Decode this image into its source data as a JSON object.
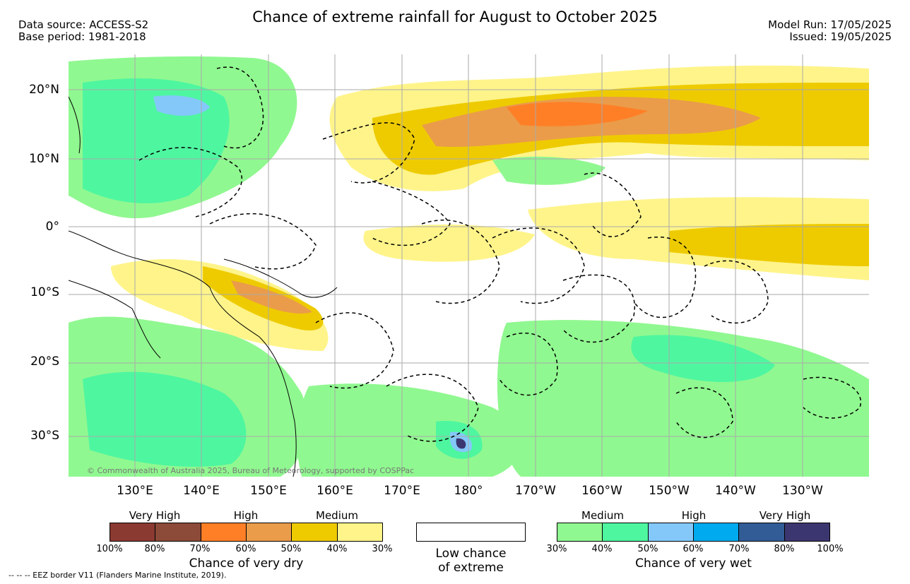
{
  "title": "Chance of extreme rainfall for August to October 2025",
  "data_source": "Data source: ACCESS-S2",
  "base_period": "Base period: 1981-2018",
  "model_run": "Model Run: 17/05/2025",
  "issued": "Issued: 19/05/2025",
  "copyright": "© Commonwealth of Australia 2025, Bureau of Meteorology, supported by COSPPac",
  "lat_labels": [
    "20°N",
    "10°N",
    "0°",
    "10°S",
    "20°S",
    "30°S"
  ],
  "lon_labels": [
    "130°E",
    "140°E",
    "150°E",
    "160°E",
    "170°E",
    "180°",
    "170°W",
    "160°W",
    "150°W",
    "140°W",
    "130°W"
  ],
  "dry_legend": {
    "categories": [
      "Very High",
      "High",
      "Medium"
    ],
    "ticks": [
      "100%",
      "80%",
      "70%",
      "60%",
      "50%",
      "40%",
      "30%"
    ],
    "caption": "Chance of very dry",
    "colors": [
      "#8b3a32",
      "#8c4a38",
      "#ff7f27",
      "#ea9c4a",
      "#eecb00",
      "#fff48a"
    ]
  },
  "low_chance": {
    "line1": "Low chance",
    "line2": "of extreme"
  },
  "wet_legend": {
    "categories": [
      "Medium",
      "High",
      "Very High"
    ],
    "ticks": [
      "30%",
      "40%",
      "50%",
      "60%",
      "70%",
      "80%",
      "100%"
    ],
    "caption": "Chance of very wet",
    "colors": [
      "#90f890",
      "#4ef6a0",
      "#84c8fa",
      "#00aaee",
      "#325c96",
      "#3c3670"
    ]
  },
  "eez_note": "-- -- -- EEZ border V11 (Flanders Marine Institute, 2019)."
}
